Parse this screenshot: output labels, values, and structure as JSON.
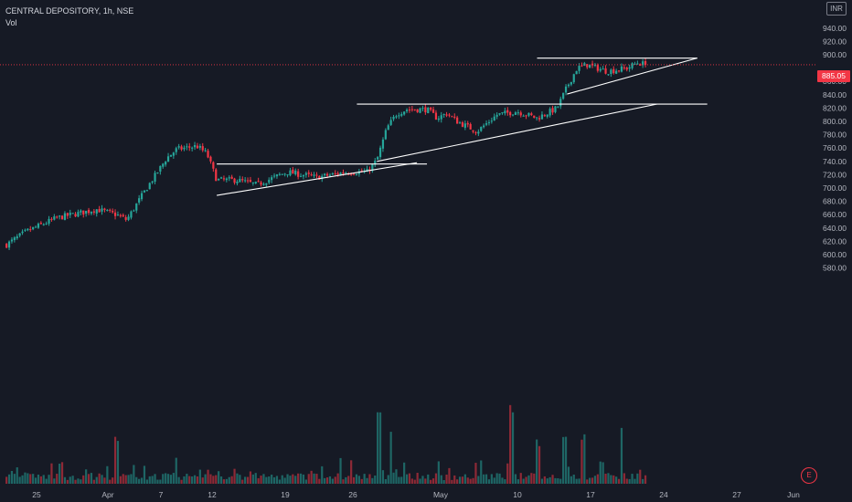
{
  "legend": {
    "title": "CENTRAL DEPOSITORY, 1h, NSE",
    "volume_label": "Vol"
  },
  "currency_badge": "INR",
  "last_price_label": "885.05",
  "event_badge": "E",
  "colors": {
    "background": "#161a25",
    "up": "#26a69a",
    "down": "#f23645",
    "trendline": "#ffffff",
    "axis_text": "#b2b5be"
  },
  "chart_data": {
    "type": "candlestick",
    "title": "CENTRAL DEPOSITORY, 1h, NSE",
    "xlabel": "",
    "ylabel": "",
    "ylim": [
      574,
      944
    ],
    "y_ticks": [
      940,
      920,
      900,
      880,
      860,
      840,
      820,
      800,
      780,
      760,
      740,
      720,
      700,
      680,
      660,
      640,
      620,
      600,
      580
    ],
    "x_tick_labels": [
      "25",
      "Apr",
      "7",
      "12",
      "19",
      "26",
      "May",
      "10",
      "17",
      "24",
      "27",
      "Jun"
    ],
    "last_price": 885.05,
    "grid": false,
    "price_path": [
      {
        "d": "Mar 22",
        "p": 615
      },
      {
        "d": "Mar 24",
        "p": 635
      },
      {
        "d": "Mar 27",
        "p": 655
      },
      {
        "d": "Mar 31",
        "p": 668
      },
      {
        "d": "Apr 2",
        "p": 660
      },
      {
        "d": "Apr 3",
        "p": 652
      },
      {
        "d": "Apr 5",
        "p": 700
      },
      {
        "d": "Apr 6",
        "p": 722
      },
      {
        "d": "Apr 7",
        "p": 745
      },
      {
        "d": "Apr 8",
        "p": 758
      },
      {
        "d": "Apr 10",
        "p": 763
      },
      {
        "d": "Apr 11",
        "p": 752
      },
      {
        "d": "Apr 12",
        "p": 712
      },
      {
        "d": "Apr 14",
        "p": 712
      },
      {
        "d": "Apr 16",
        "p": 705
      },
      {
        "d": "Apr 19",
        "p": 724
      },
      {
        "d": "Apr 22",
        "p": 716
      },
      {
        "d": "Apr 25",
        "p": 724
      },
      {
        "d": "Apr 27",
        "p": 724
      },
      {
        "d": "Apr 28",
        "p": 742
      },
      {
        "d": "Apr 29",
        "p": 790
      },
      {
        "d": "Apr 30",
        "p": 812
      },
      {
        "d": "May 1",
        "p": 818
      },
      {
        "d": "May 3",
        "p": 818
      },
      {
        "d": "May 4",
        "p": 805
      },
      {
        "d": "May 5",
        "p": 812
      },
      {
        "d": "May 6",
        "p": 800
      },
      {
        "d": "May 8",
        "p": 785
      },
      {
        "d": "May 10",
        "p": 810
      },
      {
        "d": "May 12",
        "p": 815
      },
      {
        "d": "May 14",
        "p": 805
      },
      {
        "d": "May 16",
        "p": 820
      },
      {
        "d": "May 17",
        "p": 852
      },
      {
        "d": "May 18",
        "p": 880
      },
      {
        "d": "May 19",
        "p": 885
      },
      {
        "d": "May 21",
        "p": 875
      },
      {
        "d": "May 23",
        "p": 880
      },
      {
        "d": "May 24",
        "p": 888
      },
      {
        "d": "May 25",
        "p": 885.05
      }
    ],
    "volume": {
      "base": 8,
      "spikes": [
        [
          0.58,
          72
        ],
        [
          0.6,
          60
        ],
        [
          0.79,
          80
        ],
        [
          0.87,
          60
        ],
        [
          0.96,
          64
        ],
        [
          0.93,
          28
        ],
        [
          0.17,
          48
        ],
        [
          0.83,
          48
        ],
        [
          0.9,
          56
        ]
      ]
    },
    "drawings": [
      {
        "type": "horizontal",
        "from": "Apr 12",
        "to": "May 3",
        "price": 736
      },
      {
        "type": "trend",
        "from": "Apr 12",
        "to": "May 2",
        "p1": 689,
        "p2": 738
      },
      {
        "type": "horizontal",
        "from": "Apr 26",
        "to": "May 31",
        "price": 826
      },
      {
        "type": "trend",
        "from": "Apr 28",
        "to": "May 26",
        "p1": 740,
        "p2": 826
      },
      {
        "type": "horizontal",
        "from": "May 14",
        "to": "May 30",
        "price": 895
      },
      {
        "type": "trend",
        "from": "May 17",
        "to": "May 30",
        "p1": 841,
        "p2": 895
      }
    ]
  }
}
